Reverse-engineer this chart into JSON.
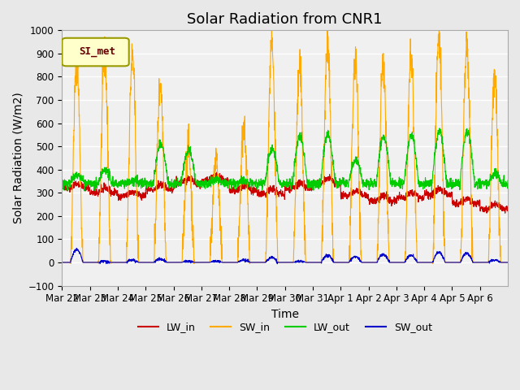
{
  "title": "Solar Radiation from CNR1",
  "xlabel": "Time",
  "ylabel": "Solar Radiation (W/m2)",
  "ylim": [
    -100,
    1000
  ],
  "legend_label": "SI_met",
  "line_colors": {
    "LW_in": "#cc0000",
    "SW_in": "#ffaa00",
    "LW_out": "#00cc00",
    "SW_out": "#0000cc"
  },
  "x_tick_labels": [
    "Mar 22",
    "Mar 23",
    "Mar 24",
    "Mar 25",
    "Mar 26",
    "Mar 27",
    "Mar 28",
    "Mar 29",
    "Mar 30",
    "Mar 31",
    "Apr 1",
    "Apr 2",
    "Apr 3",
    "Apr 4",
    "Apr 5",
    "Apr 6"
  ],
  "n_days": 16,
  "bg_color": "#e8e8e8",
  "plot_bg": "#f0f0f0",
  "grid_color": "white",
  "title_fontsize": 13,
  "axis_fontsize": 10,
  "tick_fontsize": 8.5,
  "yticks": [
    -100,
    0,
    100,
    200,
    300,
    400,
    500,
    600,
    700,
    800,
    900,
    1000
  ],
  "SW_in_peaks": [
    870,
    880,
    890,
    770,
    500,
    450,
    580,
    940,
    835,
    930,
    870,
    850,
    900,
    970,
    940,
    800
  ],
  "LW_in_base": [
    320,
    300,
    285,
    315,
    340,
    355,
    310,
    295,
    320,
    340,
    290,
    265,
    280,
    295,
    255,
    230
  ],
  "LW_out_peaks": [
    375,
    400,
    350,
    510,
    485,
    360,
    350,
    490,
    545,
    550,
    440,
    540,
    550,
    565,
    565,
    380
  ],
  "SW_out_peaks": [
    55,
    5,
    10,
    15,
    5,
    5,
    10,
    20,
    5,
    30,
    25,
    35,
    30,
    45,
    40,
    10
  ]
}
